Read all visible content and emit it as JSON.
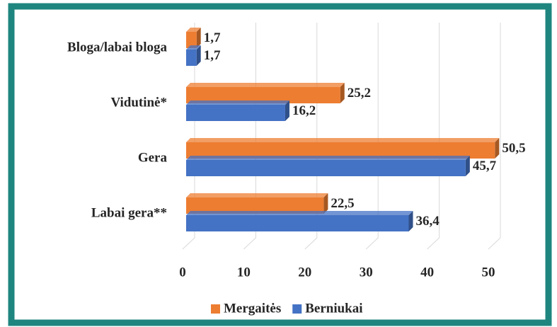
{
  "chart_data": {
    "type": "hbar",
    "categories": [
      "Bloga/labai bloga",
      "Vidutinė*",
      "Gera",
      "Labai gera**"
    ],
    "series": [
      {
        "name": "Mergaitės",
        "color": "#ed7d31",
        "values": [
          1.7,
          25.2,
          50.5,
          22.5
        ],
        "value_labels": [
          "1,7",
          "25,2",
          "50,5",
          "22,5"
        ]
      },
      {
        "name": "Berniukai",
        "color": "#4472c4",
        "values": [
          1.7,
          16.2,
          45.7,
          36.4
        ],
        "value_labels": [
          "1,7",
          "16,2",
          "45,7",
          "36,4"
        ]
      }
    ],
    "xlim": [
      0,
      50
    ],
    "xticks": [
      0,
      10,
      20,
      30,
      40,
      50
    ],
    "grid": true,
    "legend": "bottom"
  }
}
